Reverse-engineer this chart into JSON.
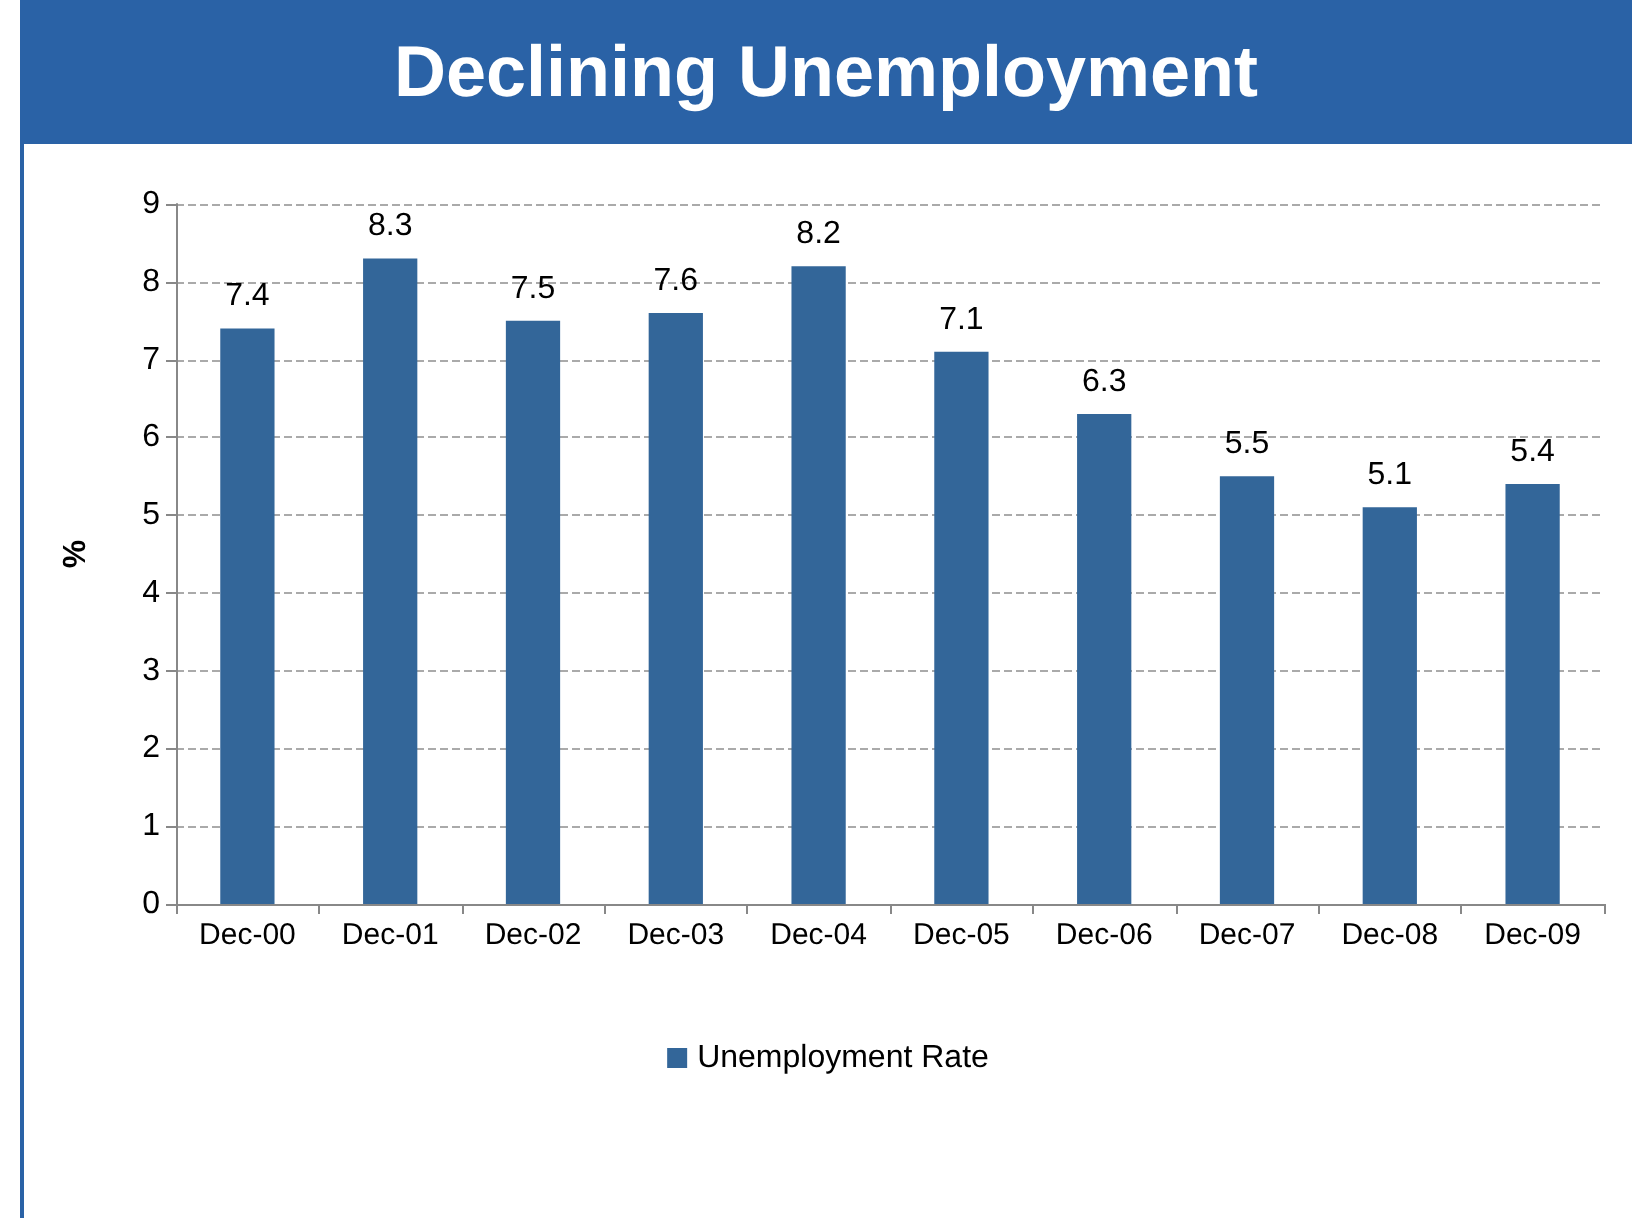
{
  "chart_data": {
    "type": "bar",
    "title": "Declining Unemployment",
    "ylabel": "%",
    "categories": [
      "Dec-00",
      "Dec-01",
      "Dec-02",
      "Dec-03",
      "Dec-04",
      "Dec-05",
      "Dec-06",
      "Dec-07",
      "Dec-08",
      "Dec-09"
    ],
    "series": [
      {
        "name": "Unemployment Rate",
        "color": "#336699",
        "values": [
          7.4,
          8.3,
          7.5,
          7.6,
          8.2,
          7.1,
          6.3,
          5.5,
          5.1,
          5.4
        ]
      }
    ],
    "ylim": [
      0,
      9
    ],
    "yticks": [
      0,
      1,
      2,
      3,
      4,
      5,
      6,
      7,
      8,
      9
    ],
    "grid": "y",
    "legend": "bottom",
    "data_labels": true
  }
}
